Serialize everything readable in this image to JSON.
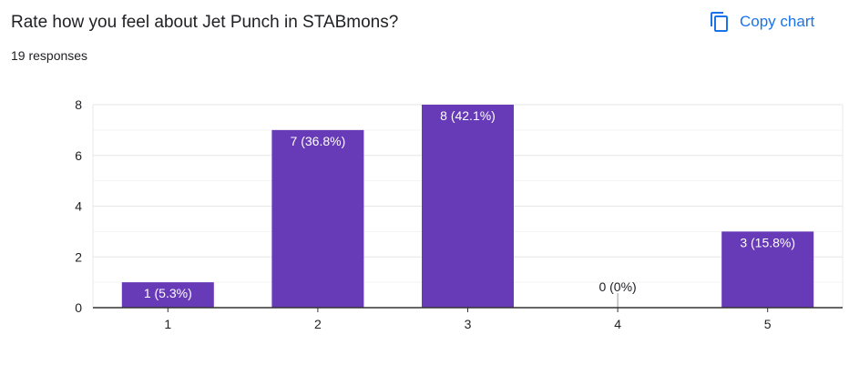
{
  "header": {
    "question": "Rate how you feel about Jet Punch in STABmons?",
    "responses": "19 responses",
    "copy_chart_label": "Copy chart",
    "copy_icon": "copy-icon"
  },
  "colors": {
    "bar": "#673ab7",
    "accent": "#1a73e8",
    "grid": "#e8e8e8",
    "axis": "#333333",
    "text": "#202124"
  },
  "chart_data": {
    "type": "bar",
    "categories": [
      "1",
      "2",
      "3",
      "4",
      "5"
    ],
    "values": [
      1,
      7,
      8,
      0,
      3
    ],
    "data_labels": [
      "1 (5.3%)",
      "7 (36.8%)",
      "8 (42.1%)",
      "0 (0%)",
      "3 (15.8%)"
    ],
    "yticks": [
      0,
      2,
      4,
      6,
      8
    ],
    "ylim": [
      0,
      8
    ],
    "grid": true,
    "legend": "none",
    "title": "",
    "xlabel": "",
    "ylabel": ""
  }
}
